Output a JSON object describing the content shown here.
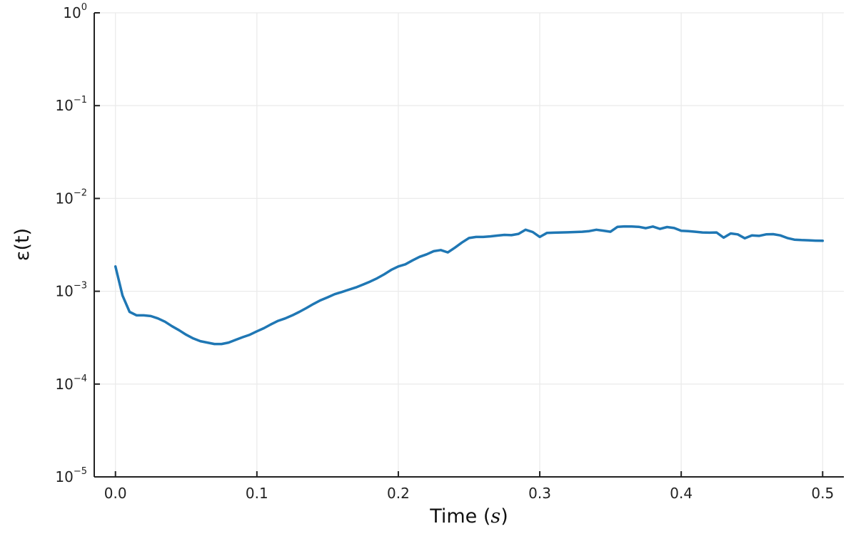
{
  "chart_data": {
    "type": "line",
    "title": "",
    "xlabel": "Time",
    "xlabel_unit": "s",
    "ylabel": "ε(t)",
    "xlim": [
      -0.015,
      0.515
    ],
    "ylim": [
      1e-05,
      1
    ],
    "yscale": "log",
    "grid": true,
    "legend": "none",
    "x_ticks": [
      {
        "value": 0.0,
        "label": "0.0"
      },
      {
        "value": 0.1,
        "label": "0.1"
      },
      {
        "value": 0.2,
        "label": "0.2"
      },
      {
        "value": 0.3,
        "label": "0.3"
      },
      {
        "value": 0.4,
        "label": "0.4"
      },
      {
        "value": 0.5,
        "label": "0.5"
      }
    ],
    "y_ticks": [
      {
        "value": 1e-05,
        "base": "10",
        "exp": "−5"
      },
      {
        "value": 0.0001,
        "base": "10",
        "exp": "−4"
      },
      {
        "value": 0.001,
        "base": "10",
        "exp": "−3"
      },
      {
        "value": 0.01,
        "base": "10",
        "exp": "−2"
      },
      {
        "value": 0.1,
        "base": "10",
        "exp": "−1"
      },
      {
        "value": 1,
        "base": "10",
        "exp": "0"
      }
    ],
    "series": [
      {
        "color": "#1f77b4",
        "x": [
          0.0,
          0.005,
          0.01,
          0.015,
          0.02,
          0.025,
          0.03,
          0.035,
          0.04,
          0.045,
          0.05,
          0.055,
          0.06,
          0.065,
          0.07,
          0.075,
          0.08,
          0.085,
          0.09,
          0.095,
          0.1,
          0.105,
          0.11,
          0.115,
          0.12,
          0.125,
          0.13,
          0.135,
          0.14,
          0.145,
          0.15,
          0.155,
          0.16,
          0.165,
          0.17,
          0.175,
          0.18,
          0.185,
          0.19,
          0.195,
          0.2,
          0.205,
          0.21,
          0.215,
          0.22,
          0.225,
          0.23,
          0.235,
          0.24,
          0.245,
          0.25,
          0.255,
          0.26,
          0.265,
          0.27,
          0.275,
          0.28,
          0.285,
          0.29,
          0.295,
          0.3,
          0.305,
          0.31,
          0.315,
          0.32,
          0.325,
          0.33,
          0.335,
          0.34,
          0.345,
          0.35,
          0.355,
          0.36,
          0.365,
          0.37,
          0.375,
          0.38,
          0.385,
          0.39,
          0.395,
          0.4,
          0.405,
          0.41,
          0.415,
          0.42,
          0.425,
          0.43,
          0.435,
          0.44,
          0.445,
          0.45,
          0.455,
          0.46,
          0.465,
          0.47,
          0.475,
          0.48,
          0.485,
          0.49,
          0.495,
          0.5
        ],
        "y": [
          0.00185,
          0.0009,
          0.0006,
          0.00055,
          0.00055,
          0.00054,
          0.00051,
          0.00047,
          0.00042,
          0.00038,
          0.00034,
          0.00031,
          0.00029,
          0.00028,
          0.00027,
          0.00027,
          0.00028,
          0.0003,
          0.00032,
          0.00034,
          0.00037,
          0.0004,
          0.00044,
          0.00048,
          0.00051,
          0.00055,
          0.0006,
          0.00066,
          0.00073,
          0.0008,
          0.00086,
          0.00093,
          0.00098,
          0.00104,
          0.0011,
          0.00118,
          0.00127,
          0.00138,
          0.00152,
          0.0017,
          0.00185,
          0.00195,
          0.00215,
          0.00235,
          0.0025,
          0.0027,
          0.00278,
          0.00262,
          0.00295,
          0.00335,
          0.00375,
          0.00385,
          0.00385,
          0.0039,
          0.00398,
          0.00405,
          0.00402,
          0.00415,
          0.0046,
          0.00435,
          0.00385,
          0.00425,
          0.00428,
          0.0043,
          0.00432,
          0.00435,
          0.00438,
          0.00445,
          0.0046,
          0.0045,
          0.00438,
          0.00495,
          0.005,
          0.00498,
          0.00495,
          0.00478,
          0.00498,
          0.0047,
          0.00492,
          0.0048,
          0.00448,
          0.00445,
          0.00438,
          0.0043,
          0.00428,
          0.0043,
          0.00378,
          0.0042,
          0.0041,
          0.00372,
          0.004,
          0.00395,
          0.0041,
          0.00412,
          0.004,
          0.00375,
          0.0036,
          0.00356,
          0.00354,
          0.00351,
          0.0035
        ]
      }
    ]
  }
}
